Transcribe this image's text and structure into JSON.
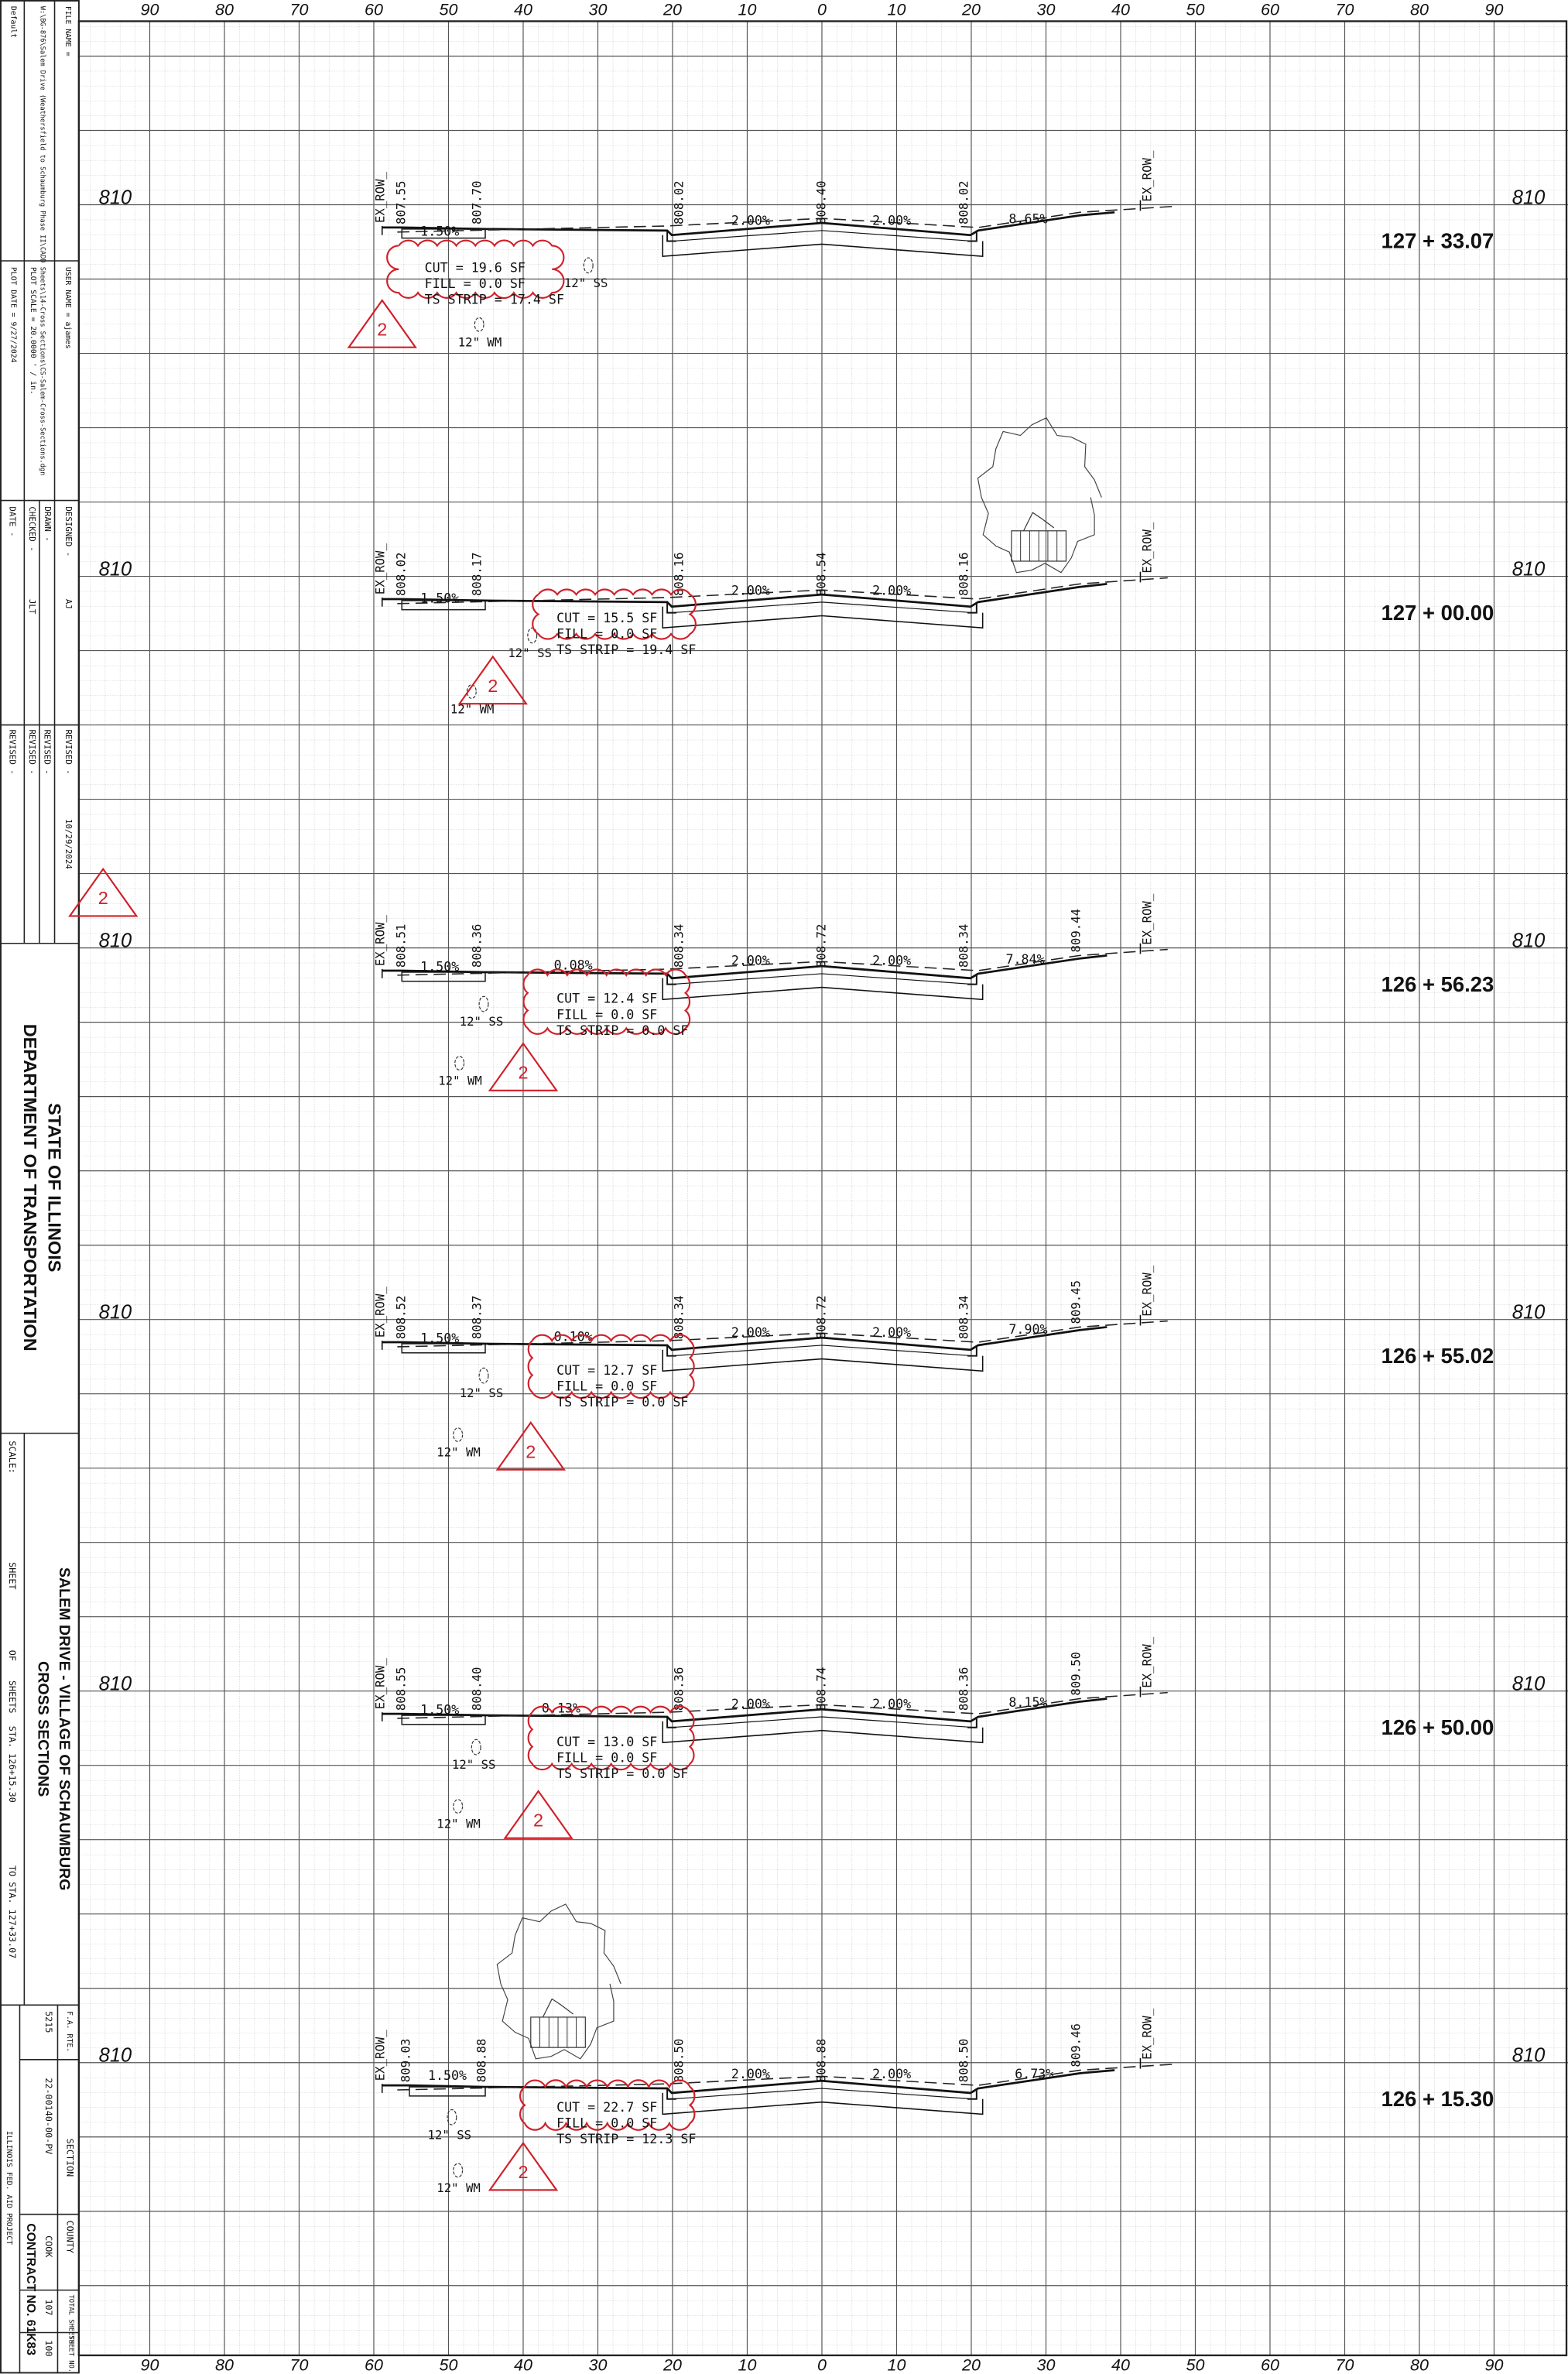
{
  "title_block": {
    "default": "Default",
    "file_name_label": "FILE NAME =",
    "file_name": "W:\\BG-876\\Salem Drive (Weathersfield to Schaumburg Phase II\\CADD Sheets\\14-Cross Sections\\CS-Salem-Cross-Sections.dgn",
    "user_name": "USER NAME = ajames",
    "plot_scale": "PLOT SCALE = 20.0000 ' / in.",
    "plot_date": "PLOT DATE = 9/27/2024",
    "designed": "DESIGNED -",
    "designed_by": "AJ",
    "drawn": "DRAWN -",
    "checked": "CHECKED -",
    "checked_by": "JLT",
    "date": "DATE -",
    "revised": [
      "REVISED -",
      "REVISED -",
      "REVISED -",
      "REVISED -"
    ],
    "revised_date": "10/29/2024",
    "state": "STATE OF ILLINOIS",
    "department": "DEPARTMENT OF TRANSPORTATION",
    "project": "SALEM DRIVE - VILLAGE OF SCHAUMBURG",
    "sheet_title": "CROSS SECTIONS",
    "scale": "SCALE:",
    "sheet": "SHEET",
    "of": "OF",
    "sheets": "SHEETS",
    "from_station": "STA. 126+15.30",
    "to_station": "TO STA. 127+33.07",
    "fa_rte_label": "F.A. RTE.",
    "fa_rte": "5215",
    "section_label": "SECTION",
    "section": "22-00140-00-PV",
    "county_label": "COUNTY",
    "county": "COOK",
    "total_sheets_label": "TOTAL SHEETS",
    "sheet_no_label": "SHEET NO.",
    "total_sheets": "107",
    "sheet_no": "100",
    "contract": "CONTRACT NO. 61K83",
    "fed_aid": "ILLINOIS FED. AID PROJECT"
  },
  "revision_marker": "2",
  "axis_labels": [
    90,
    80,
    70,
    60,
    50,
    40,
    30,
    20,
    10,
    0,
    10,
    20,
    30,
    40,
    50,
    60,
    70,
    80,
    90
  ],
  "sections": [
    {
      "station": "127 + 33.07",
      "grade": 810,
      "ex_row": "EX_ROW_",
      "elevations": [
        "807.55",
        "807.70",
        "808.02",
        "808.40",
        "808.02"
      ],
      "slopes": [
        "1.50%",
        "2.00%",
        "2.00%",
        "8.65%"
      ],
      "cut": "CUT = 19.6 SF",
      "fill": "FILL = 0.0 SF",
      "ts_strip": "TS STRIP = 17.4 SF",
      "sewer": "12\" SS",
      "water_main": "12\" WM",
      "revision": "2"
    },
    {
      "station": "127 + 00.00",
      "grade": 810,
      "ex_row": "EX_ROW_",
      "elevations": [
        "808.02",
        "808.17",
        "808.16",
        "808.54",
        "808.16"
      ],
      "slopes": [
        "1.50%",
        "2.00%",
        "2.00%"
      ],
      "cut": "CUT = 15.5 SF",
      "fill": "FILL = 0.0 SF",
      "ts_strip": "TS STRIP = 19.4 SF",
      "sewer": "12\" SS",
      "water_main": "12\" WM",
      "revision": "2"
    },
    {
      "station": "126 + 56.23",
      "grade": 810,
      "ex_row": "EX_ROW_",
      "elevations": [
        "808.51",
        "808.36",
        "808.34",
        "808.72",
        "808.34",
        "809.44"
      ],
      "slopes": [
        "1.50%",
        "0.08%",
        "2.00%",
        "2.00%",
        "7.84%"
      ],
      "cut": "CUT = 12.4 SF",
      "fill": "FILL = 0.0 SF",
      "ts_strip": "TS STRIP = 0.0 SF",
      "sewer": "12\" SS",
      "water_main": "12\" WM",
      "revision": "2"
    },
    {
      "station": "126 + 55.02",
      "grade": 810,
      "ex_row": "EX_ROW_",
      "elevations": [
        "808.52",
        "808.37",
        "808.34",
        "808.72",
        "808.34",
        "809.45"
      ],
      "slopes": [
        "1.50%",
        "0.10%",
        "2.00%",
        "2.00%",
        "7.90%"
      ],
      "cut": "CUT = 12.7 SF",
      "fill": "FILL = 0.0 SF",
      "ts_strip": "TS STRIP = 0.0 SF",
      "sewer": "12\" SS",
      "water_main": "12\" WM",
      "revision": "2"
    },
    {
      "station": "126 + 50.00",
      "grade": 810,
      "ex_row": "EX_ROW_",
      "elevations": [
        "808.55",
        "808.40",
        "808.36",
        "808.74",
        "808.36",
        "809.50"
      ],
      "slopes": [
        "1.50%",
        "0.13%",
        "2.00%",
        "2.00%",
        "8.15%"
      ],
      "cut": "CUT = 13.0 SF",
      "fill": "FILL = 0.0 SF",
      "ts_strip": "TS STRIP = 0.0 SF",
      "sewer": "12\" SS",
      "water_main": "12\" WM",
      "revision": "2"
    },
    {
      "station": "126 + 15.30",
      "grade": 810,
      "ex_row": "EX_ROW_",
      "elevations": [
        "809.03",
        "808.88",
        "808.50",
        "808.88",
        "808.50",
        "809.46"
      ],
      "slopes": [
        "1.50%",
        "2.00%",
        "2.00%",
        "6.73%"
      ],
      "cut": "CUT = 22.7 SF",
      "fill": "FILL = 0.0 SF",
      "ts_strip": "TS STRIP = 12.3 SF",
      "sewer": "12\" SS",
      "water_main": "12\" WM",
      "revision": "2"
    }
  ]
}
